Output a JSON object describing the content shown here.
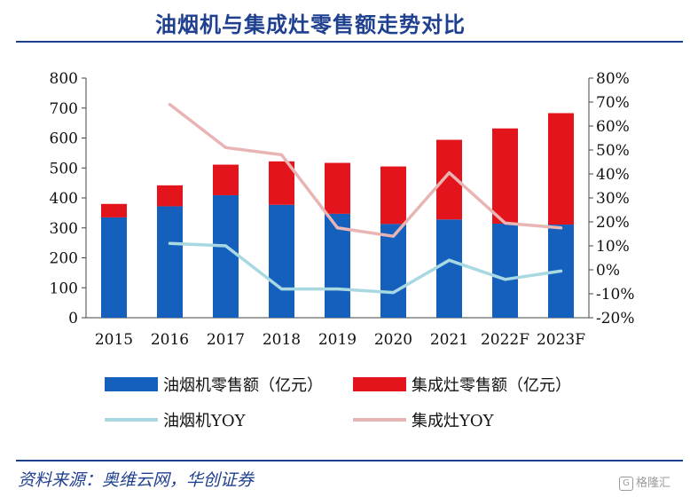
{
  "title": "油烟机与集成灶零售额走势对比",
  "source": "资料来源：奥维云网，华创证券",
  "watermark": "格隆汇",
  "chart_data": {
    "type": "bar",
    "stacked": true,
    "categories": [
      "2015",
      "2016",
      "2017",
      "2018",
      "2019",
      "2020",
      "2021",
      "2022F",
      "2023F"
    ],
    "series": [
      {
        "name": "油烟机零售额（亿元）",
        "type": "bar",
        "axis": "left",
        "color": "#1560bd",
        "values": [
          335,
          372,
          409,
          377,
          347,
          313,
          328,
          314,
          311
        ]
      },
      {
        "name": "集成灶零售额（亿元）",
        "type": "bar",
        "axis": "left",
        "color": "#e3141b",
        "values": [
          45,
          70,
          102,
          145,
          170,
          192,
          266,
          318,
          372
        ]
      },
      {
        "name": "油烟机YOY",
        "type": "line",
        "axis": "right",
        "color": "#a8d8e2",
        "values": [
          null,
          11,
          10,
          -8,
          -8,
          -9.5,
          4,
          -4,
          -0.5
        ]
      },
      {
        "name": "集成灶YOY",
        "type": "line",
        "axis": "right",
        "color": "#e8b4b4",
        "values": [
          null,
          69,
          51,
          48,
          17.5,
          14,
          40.5,
          19.5,
          17.5
        ]
      }
    ],
    "ylim_left": [
      0,
      800
    ],
    "yticks_left": [
      "0",
      "100",
      "200",
      "300",
      "400",
      "500",
      "600",
      "700",
      "800"
    ],
    "ylim_right": [
      -20,
      80
    ],
    "yticks_right": [
      "-20%",
      "-10%",
      "0%",
      "10%",
      "20%",
      "30%",
      "40%",
      "50%",
      "60%",
      "70%",
      "80%"
    ],
    "grid": false,
    "legend_position": "bottom"
  }
}
